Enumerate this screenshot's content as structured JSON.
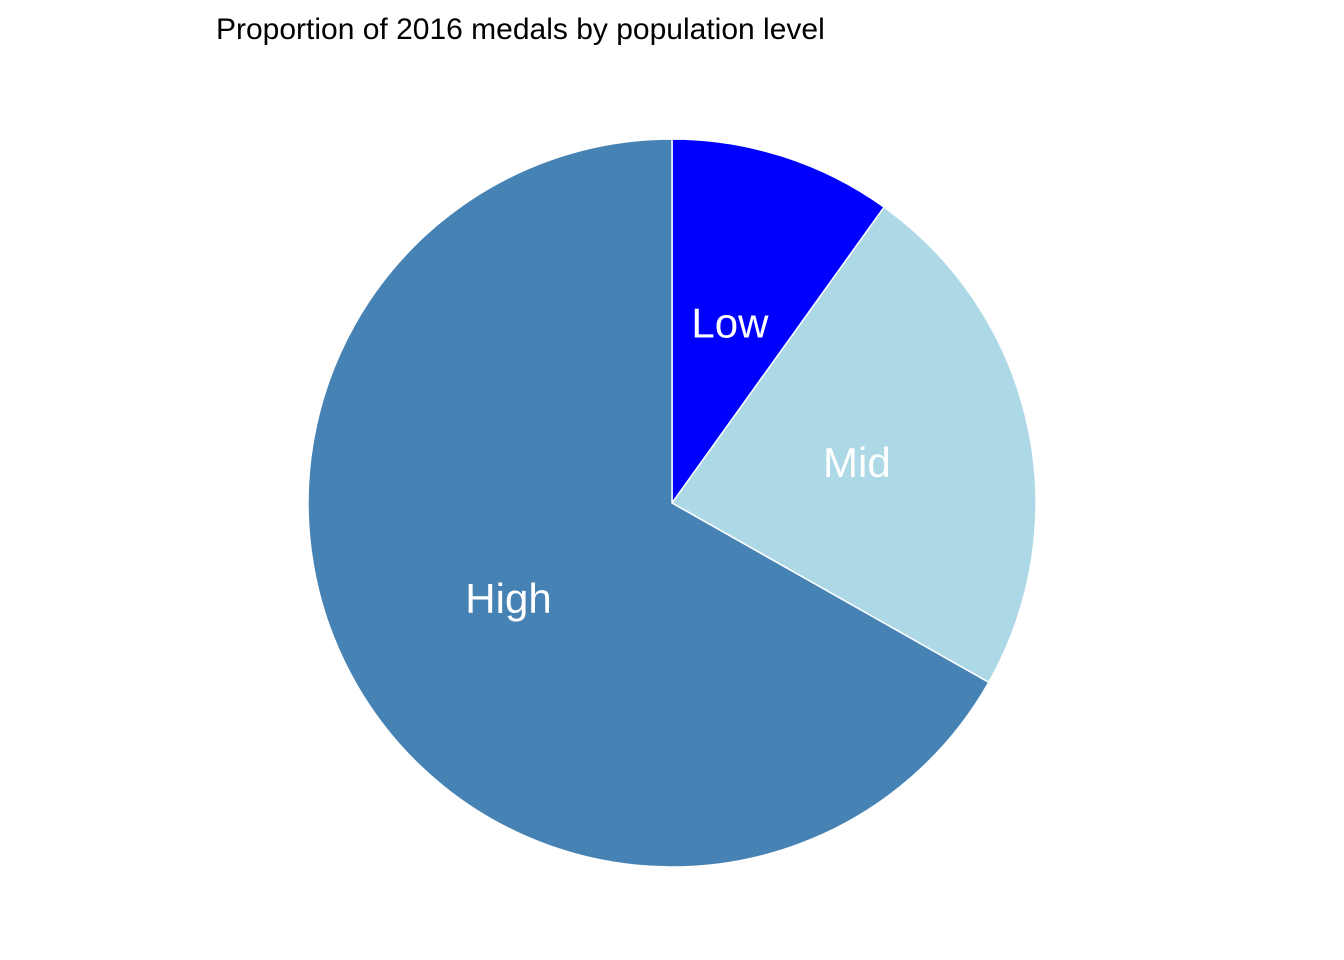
{
  "chart_data": {
    "type": "pie",
    "title": "Proportion of 2016 medals by population level",
    "slices": [
      {
        "label": "Low",
        "value": 0.099,
        "color": "#0000FF"
      },
      {
        "label": "Mid",
        "value": 0.233,
        "color": "#ADD8E6"
      },
      {
        "label": "High",
        "value": 0.668,
        "color": "#4682B4"
      }
    ],
    "start": "12 o'clock",
    "direction": "clockwise",
    "slice_border_color": "#FFFFFF",
    "label_color": "#FFFFFF"
  }
}
